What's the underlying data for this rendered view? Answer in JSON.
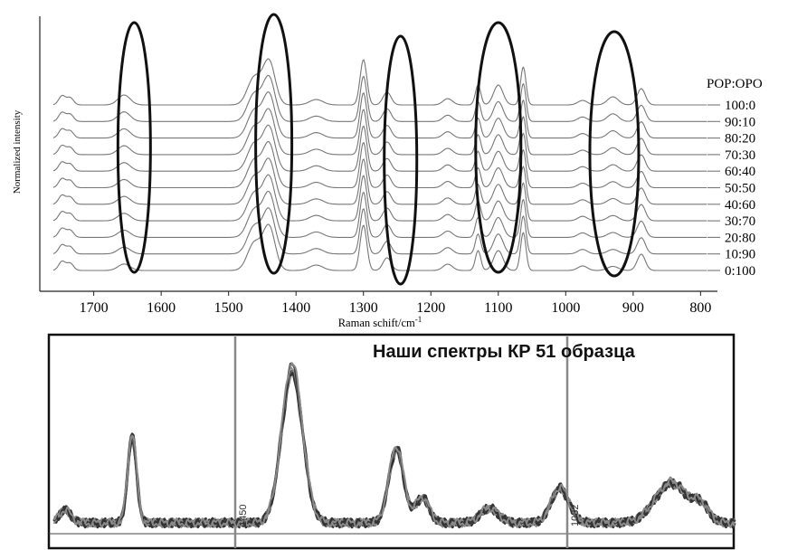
{
  "chart_data": [
    {
      "type": "line",
      "ylabel": "Normalized intensity",
      "xlabel": "Raman schift/cm",
      "xlabel_sup": "-1",
      "x_reversed": true,
      "xlim": [
        1780,
        775
      ],
      "x_ticks": [
        "1700",
        "1600",
        "1500",
        "1400",
        "1300",
        "1200",
        "1100",
        "1000",
        "900",
        "800"
      ],
      "legend_title": "POP:OPO",
      "series_labels": [
        "100:0",
        "90:10",
        "80:20",
        "70:30",
        "60:40",
        "50:50",
        "40:60",
        "30:70",
        "20:80",
        "10:90",
        "0:100"
      ],
      "peaks_cm": [
        1747,
        1735,
        1655,
        1462,
        1440,
        1370,
        1300,
        1265,
        1175,
        1130,
        1100,
        1063,
        975,
        930,
        888
      ],
      "highlighted_bands_cm": [
        1640,
        1433,
        1245,
        1100,
        928
      ],
      "line_color": "#777777",
      "ellipse_color": "#111111"
    },
    {
      "type": "line",
      "title": "Наши спектры КР 51 образца",
      "ref_marks": [
        "1450",
        "1082"
      ],
      "peaks_cm": [
        1745,
        1655,
        1440,
        1300,
        1265,
        1175,
        1080,
        930,
        890
      ],
      "line_color": "#333333",
      "frame_color": "#111111"
    }
  ]
}
